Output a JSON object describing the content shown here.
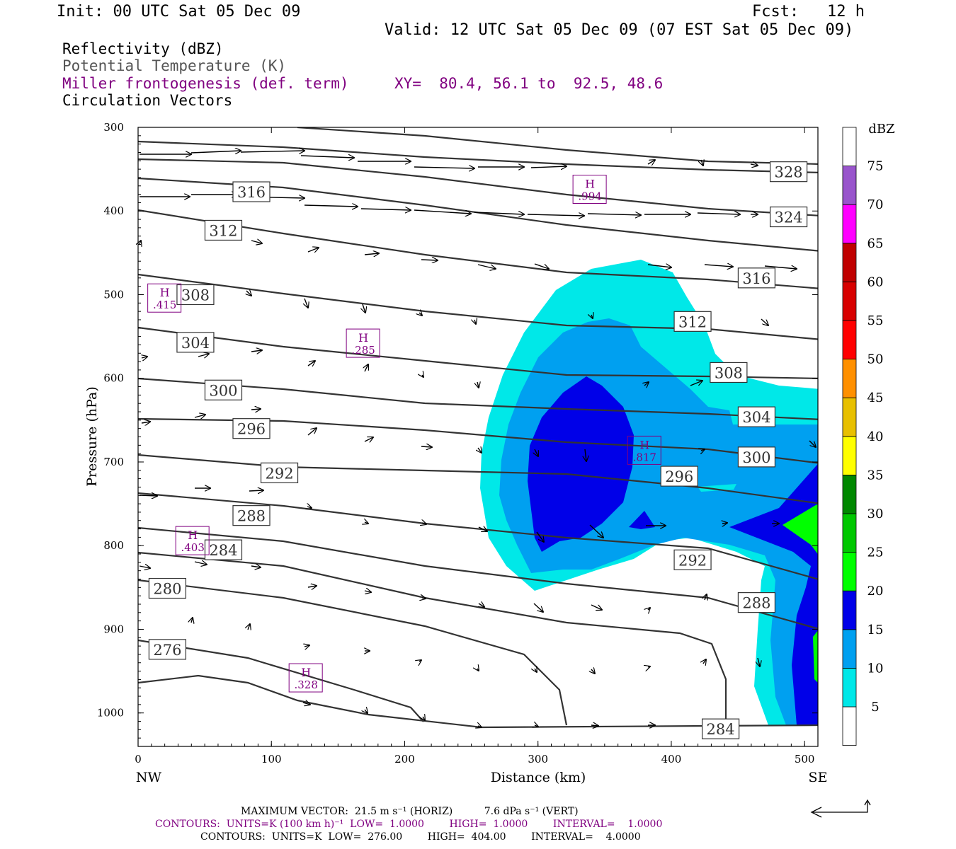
{
  "header": {
    "init": "Init: 00 UTC Sat 05 Dec 09",
    "fcst": "Fcst:   12 h",
    "valid": "Valid: 12 UTC Sat 05 Dec 09 (07 EST Sat 05 Dec 09)",
    "field1": "Reflectivity (dBZ)",
    "field2": "Potential Temperature (K)",
    "field3": "Miller frontogenesis (def. term)",
    "xy": "XY=  80.4, 56.1 to  92.5, 48.6",
    "field4": "Circulation Vectors"
  },
  "colors": {
    "theta": "#333333",
    "miller": "#800080",
    "refl": [
      "#ffffff",
      "#00e8e8",
      "#00a0f0",
      "#0000e8",
      "#00ff00",
      "#00c800",
      "#008800",
      "#ffff00",
      "#e8c000",
      "#ff9000",
      "#ff0000",
      "#d80000",
      "#c00000",
      "#ff00ff",
      "#9955cc",
      "#ffffff"
    ]
  },
  "chart_data": {
    "type": "cross-section",
    "xlabel": "Distance (km)",
    "ylabel": "Pressure (hPa)",
    "xlim": [
      0,
      510
    ],
    "ylim": [
      1040,
      300
    ],
    "x_ticks": [
      "0",
      "100",
      "200",
      "300",
      "400",
      "500"
    ],
    "y_ticks": [
      "300",
      "400",
      "500",
      "600",
      "700",
      "800",
      "900",
      "1000"
    ],
    "x_left_label": "NW",
    "x_right_label": "SE",
    "colorbar": {
      "unit": "dBZ",
      "levels": [
        "5",
        "10",
        "15",
        "20",
        "25",
        "30",
        "35",
        "40",
        "45",
        "50",
        "55",
        "60",
        "65",
        "70",
        "75"
      ]
    },
    "theta_labels": [
      {
        "text": "328",
        "x": 488,
        "p": 353
      },
      {
        "text": "324",
        "x": 488,
        "p": 407
      },
      {
        "text": "316",
        "x": 85,
        "p": 377
      },
      {
        "text": "316",
        "x": 464,
        "p": 480
      },
      {
        "text": "312",
        "x": 64,
        "p": 423
      },
      {
        "text": "312",
        "x": 416,
        "p": 532
      },
      {
        "text": "308",
        "x": 43,
        "p": 500
      },
      {
        "text": "308",
        "x": 443,
        "p": 593
      },
      {
        "text": "304",
        "x": 43,
        "p": 557
      },
      {
        "text": "304",
        "x": 464,
        "p": 646
      },
      {
        "text": "300",
        "x": 64,
        "p": 614
      },
      {
        "text": "300",
        "x": 464,
        "p": 694
      },
      {
        "text": "296",
        "x": 85,
        "p": 660
      },
      {
        "text": "296",
        "x": 406,
        "p": 717
      },
      {
        "text": "292",
        "x": 106,
        "p": 713
      },
      {
        "text": "292",
        "x": 416,
        "p": 817
      },
      {
        "text": "288",
        "x": 85,
        "p": 764
      },
      {
        "text": "288",
        "x": 464,
        "p": 868
      },
      {
        "text": "284",
        "x": 64,
        "p": 805
      },
      {
        "text": "284",
        "x": 437,
        "p": 1019
      },
      {
        "text": "280",
        "x": 22,
        "p": 851
      },
      {
        "text": "276",
        "x": 22,
        "p": 924
      }
    ],
    "miller_maxima": [
      {
        "label": "H",
        "value": ".994",
        "x": 339,
        "p": 374
      },
      {
        "label": "H",
        "value": ".415",
        "x": 20,
        "p": 504
      },
      {
        "label": "H",
        "value": ".285",
        "x": 169,
        "p": 558
      },
      {
        "label": "H",
        "value": ".817",
        "x": 380,
        "p": 686
      },
      {
        "label": "H",
        "value": ".403",
        "x": 41,
        "p": 794
      },
      {
        "label": "H",
        "value": ".328",
        "x": 126,
        "p": 958
      }
    ],
    "footer": {
      "vector_line": "MAXIMUM VECTOR:  21.5 m s⁻¹ (HORIZ)          7.6 dPa s⁻¹ (VERT)",
      "miller_contours": "CONTOURS:  UNITS=K (100 km h)⁻¹  LOW=  1.0000        HIGH=  1.0000        INTERVAL=    1.0000",
      "theta_contours": "CONTOURS:  UNITS=K  LOW=  276.00        HIGH=  404.00        INTERVAL=    4.0000"
    }
  }
}
